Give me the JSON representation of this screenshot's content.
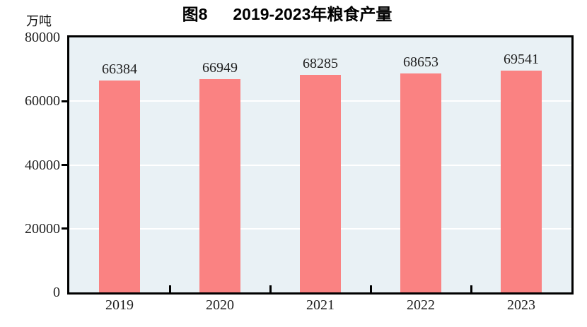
{
  "header": {
    "title_figure": "图8",
    "title_text": "2019-2023年粮食产量",
    "unit_label": "万吨"
  },
  "chart_data": {
    "type": "bar",
    "title": "图8 2019-2023年粮食产量",
    "categories": [
      "2019",
      "2020",
      "2021",
      "2022",
      "2023"
    ],
    "values": [
      66384,
      66949,
      68285,
      68653,
      69541
    ],
    "value_labels": [
      "66384",
      "66949",
      "68285",
      "68653",
      "69541"
    ],
    "xlabel": "",
    "ylabel": "万吨",
    "ylim": [
      0,
      80000
    ],
    "ytick_interval": 20000,
    "ytick_labels": [
      "80000",
      "60000",
      "40000",
      "20000",
      "0"
    ],
    "ytick_values": [
      80000,
      60000,
      40000,
      20000,
      0
    ],
    "gridline_values": [
      60000,
      40000,
      20000
    ],
    "grid": true,
    "legend": "none",
    "colors": {
      "bar": "#FA8282",
      "plot_background": "#E9F1F5",
      "gridline": "#FFFFFF",
      "axis": "#000000",
      "title_text": "#000000",
      "tick_text": "#1F1F1F"
    }
  }
}
